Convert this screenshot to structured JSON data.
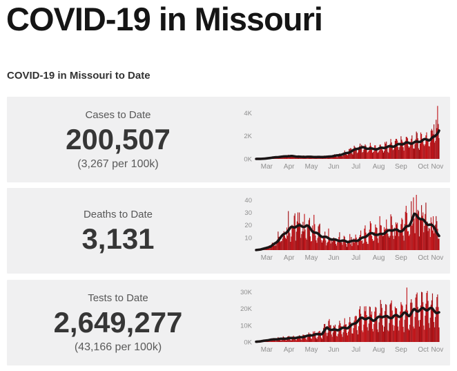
{
  "header": {
    "title": "COVID-19 in Missouri",
    "section_title": "COVID-19 in Missouri to Date"
  },
  "colors": {
    "page_bg": "#ffffff",
    "panel_bg": "#f0f0f1",
    "bar_light": "#c0161b",
    "bar_dark": "#a31015",
    "avg_line": "#1a1415",
    "tick_text": "#8e8e8e",
    "month_text": "#8e8e8e",
    "title_text": "#151515",
    "value_text": "#363636"
  },
  "panels": [
    {
      "id": "cases",
      "label": "Cases to Date",
      "value": "200,507",
      "per_capita": "(3,267 per 100k)"
    },
    {
      "id": "deaths",
      "label": "Deaths to Date",
      "value": "3,131",
      "per_capita": ""
    },
    {
      "id": "tests",
      "label": "Tests to Date",
      "value": "2,649,277",
      "per_capita": "(43,166 per 100k)"
    }
  ],
  "chart_data": [
    {
      "type": "bar",
      "name": "daily-cases-with-7-day-average",
      "x_months": [
        "Mar",
        "Apr",
        "May",
        "Jun",
        "Jul",
        "Aug",
        "Sep",
        "Oct",
        "Nov"
      ],
      "month_starts": [
        0,
        31,
        61,
        92,
        122,
        153,
        184,
        214,
        245
      ],
      "days": 252,
      "ylim": [
        0,
        4800
      ],
      "yticks": [
        {
          "v": 0,
          "label": "0K"
        },
        {
          "v": 2000,
          "label": "2K"
        },
        {
          "v": 4000,
          "label": "4K"
        }
      ],
      "weekly_avg": [
        0,
        5,
        30,
        90,
        140,
        190,
        230,
        240,
        200,
        175,
        190,
        175,
        155,
        165,
        185,
        235,
        290,
        390,
        540,
        720,
        900,
        960,
        930,
        880,
        860,
        950,
        1060,
        1150,
        1240,
        1300,
        1380,
        1450,
        1540,
        1600,
        1660,
        1950,
        2700
      ],
      "weekday_pattern": [
        0.62,
        0.85,
        1.28,
        1.42,
        1.3,
        1.12,
        0.72
      ],
      "noise": 0.2,
      "seed": 1,
      "spikes": [
        [
          249,
          4600
        ],
        [
          247,
          3400
        ],
        [
          244,
          3000
        ]
      ]
    },
    {
      "type": "bar",
      "name": "daily-deaths-with-7-day-average",
      "x_months": [
        "Mar",
        "Apr",
        "May",
        "Jun",
        "Jul",
        "Aug",
        "Sep",
        "Oct",
        "Nov"
      ],
      "month_starts": [
        0,
        31,
        61,
        92,
        122,
        153,
        184,
        214,
        245
      ],
      "days": 252,
      "ylim": [
        0,
        44
      ],
      "yticks": [
        {
          "v": 10,
          "label": "10"
        },
        {
          "v": 20,
          "label": "20"
        },
        {
          "v": 30,
          "label": "30"
        },
        {
          "v": 40,
          "label": "40"
        }
      ],
      "weekly_avg": [
        0,
        0.5,
        1.5,
        3,
        6,
        10,
        14,
        18,
        20,
        18.5,
        19,
        16,
        13.5,
        11,
        9.5,
        8.5,
        8,
        7.5,
        6.5,
        7,
        8,
        10,
        12,
        13,
        12,
        14,
        15,
        16,
        15,
        17,
        20,
        27,
        26,
        23,
        21,
        17,
        10
      ],
      "weekday_pattern": [
        0.65,
        0.9,
        1.3,
        1.38,
        1.22,
        1.05,
        0.68
      ],
      "noise": 0.45,
      "seed": 2,
      "spikes": [
        [
          216,
          42
        ],
        [
          223,
          31
        ],
        [
          58,
          30
        ],
        [
          229,
          30
        ],
        [
          170,
          27
        ]
      ]
    },
    {
      "type": "bar",
      "name": "daily-tests-with-7-day-average",
      "x_months": [
        "Mar",
        "Apr",
        "May",
        "Jun",
        "Jul",
        "Aug",
        "Sep",
        "Oct",
        "Nov"
      ],
      "month_starts": [
        0,
        31,
        61,
        92,
        122,
        153,
        184,
        214,
        245
      ],
      "days": 252,
      "ylim": [
        0,
        33000
      ],
      "yticks": [
        {
          "v": 0,
          "label": "0K"
        },
        {
          "v": 10000,
          "label": "10K"
        },
        {
          "v": 20000,
          "label": "20K"
        },
        {
          "v": 30000,
          "label": "30K"
        }
      ],
      "weekly_avg": [
        100,
        400,
        900,
        1300,
        1600,
        1900,
        2100,
        2300,
        2400,
        2900,
        3600,
        4100,
        4400,
        4800,
        8800,
        7200,
        7000,
        8000,
        8800,
        10500,
        12500,
        14000,
        14200,
        13600,
        14200,
        15200,
        14400,
        16000,
        15400,
        16400,
        16000,
        19400,
        19600,
        19000,
        19400,
        19200,
        17400
      ],
      "weekday_pattern": [
        0.42,
        0.72,
        1.32,
        1.5,
        1.4,
        1.18,
        0.58
      ],
      "noise": 0.16,
      "seed": 3,
      "spikes": [
        [
          207,
          32500
        ],
        [
          235,
          30500
        ],
        [
          221,
          29500
        ],
        [
          242,
          29000
        ]
      ]
    }
  ]
}
